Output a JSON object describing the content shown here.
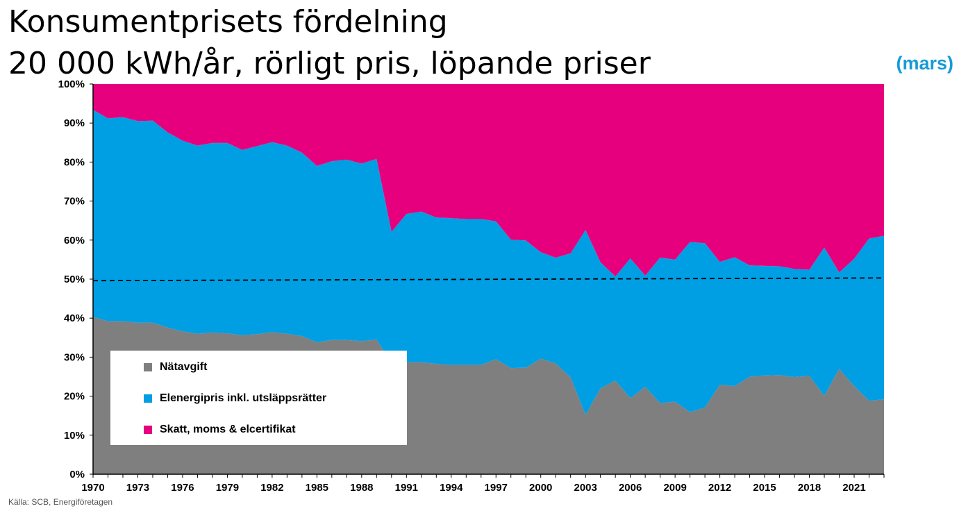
{
  "header": {
    "title_line1": "Konsumentprisets fördelning",
    "title_line2": "20 000 kWh/år, rörligt pris, löpande priser",
    "period_note": "(mars)"
  },
  "footer": {
    "source": "Källa: SCB, Energiföretagen"
  },
  "colors": {
    "natavgift": "#7f7f7f",
    "elenergipris": "#009ee3",
    "skatt": "#e6007e",
    "reference_line": "#000000"
  },
  "chart_data": {
    "type": "area",
    "stacked": true,
    "percent": true,
    "x": [
      1970,
      1971,
      1972,
      1973,
      1974,
      1975,
      1976,
      1977,
      1978,
      1979,
      1980,
      1981,
      1982,
      1983,
      1984,
      1985,
      1986,
      1987,
      1988,
      1989,
      1990,
      1991,
      1992,
      1993,
      1994,
      1995,
      1996,
      1997,
      1998,
      1999,
      2000,
      2001,
      2002,
      2003,
      2004,
      2005,
      2006,
      2007,
      2008,
      2009,
      2010,
      2011,
      2012,
      2013,
      2014,
      2015,
      2016,
      2017,
      2018,
      2019,
      2020,
      2021,
      2022,
      2023
    ],
    "x_tick_labels": [
      "1970",
      "1973",
      "1976",
      "1979",
      "1982",
      "1985",
      "1988",
      "1991",
      "1994",
      "1997",
      "2000",
      "2003",
      "2006",
      "2009",
      "2012",
      "2015",
      "2018",
      "2021"
    ],
    "y_tick_labels": [
      "0%",
      "10%",
      "20%",
      "30%",
      "40%",
      "50%",
      "60%",
      "70%",
      "80%",
      "90%",
      "100%"
    ],
    "ylim": [
      0,
      100
    ],
    "series": [
      {
        "name": "Nätavgift",
        "color_key": "natavgift",
        "values": [
          40.3,
          39.2,
          39.2,
          38.8,
          38.8,
          37.6,
          36.6,
          36.0,
          36.3,
          36.1,
          35.6,
          35.9,
          36.4,
          36.0,
          35.4,
          33.8,
          34.4,
          34.4,
          34.1,
          34.5,
          28.5,
          28.7,
          28.7,
          28.3,
          28.0,
          28.0,
          28.0,
          29.5,
          27.2,
          27.3,
          29.6,
          28.4,
          24.8,
          15.2,
          22.0,
          24.0,
          19.5,
          22.4,
          18.2,
          18.6,
          15.9,
          17.1,
          22.9,
          22.6,
          25.0,
          25.3,
          25.4,
          24.9,
          25.2,
          20.1,
          27.0,
          22.6,
          18.8,
          19.2
        ]
      },
      {
        "name": "Elenergipris inkl. utsläppsrätter",
        "color_key": "elenergipris",
        "values": [
          53.1,
          52.0,
          52.3,
          51.7,
          51.8,
          50.0,
          48.9,
          48.2,
          48.6,
          48.8,
          47.5,
          48.2,
          48.7,
          48.2,
          47.0,
          45.2,
          45.8,
          46.2,
          45.5,
          46.3,
          33.6,
          38.0,
          38.6,
          37.5,
          37.6,
          37.4,
          37.4,
          35.3,
          32.9,
          32.6,
          27.3,
          27.1,
          31.8,
          47.4,
          32.3,
          26.7,
          35.8,
          28.5,
          37.3,
          36.4,
          43.6,
          42.1,
          31.5,
          33.0,
          28.5,
          28.1,
          27.9,
          27.7,
          27.2,
          38.0,
          24.7,
          32.6,
          41.6,
          41.9
        ]
      },
      {
        "name": "Skatt, moms & elcertifikat",
        "color_key": "skatt",
        "values": [
          6.6,
          8.8,
          8.5,
          9.5,
          9.4,
          12.4,
          14.5,
          15.8,
          15.1,
          15.1,
          16.9,
          15.9,
          14.9,
          15.8,
          17.6,
          21.0,
          19.8,
          19.4,
          20.4,
          19.2,
          37.9,
          33.3,
          32.7,
          34.2,
          34.4,
          34.6,
          34.6,
          35.2,
          39.9,
          40.1,
          43.1,
          44.5,
          43.4,
          37.4,
          45.7,
          49.3,
          44.7,
          49.1,
          44.5,
          45.0,
          40.5,
          40.8,
          45.6,
          44.4,
          46.5,
          46.6,
          46.7,
          47.4,
          47.6,
          41.9,
          48.3,
          44.8,
          39.6,
          38.9
        ]
      }
    ],
    "reference_line": {
      "style": "dashed",
      "y_start": 49.6,
      "y_end": 50.3
    },
    "legend": [
      "Nätavgift",
      "Elenergipris inkl. utsläppsrätter",
      "Skatt, moms & elcertifikat"
    ],
    "legend_placement": "bottom-left",
    "grid": false
  }
}
